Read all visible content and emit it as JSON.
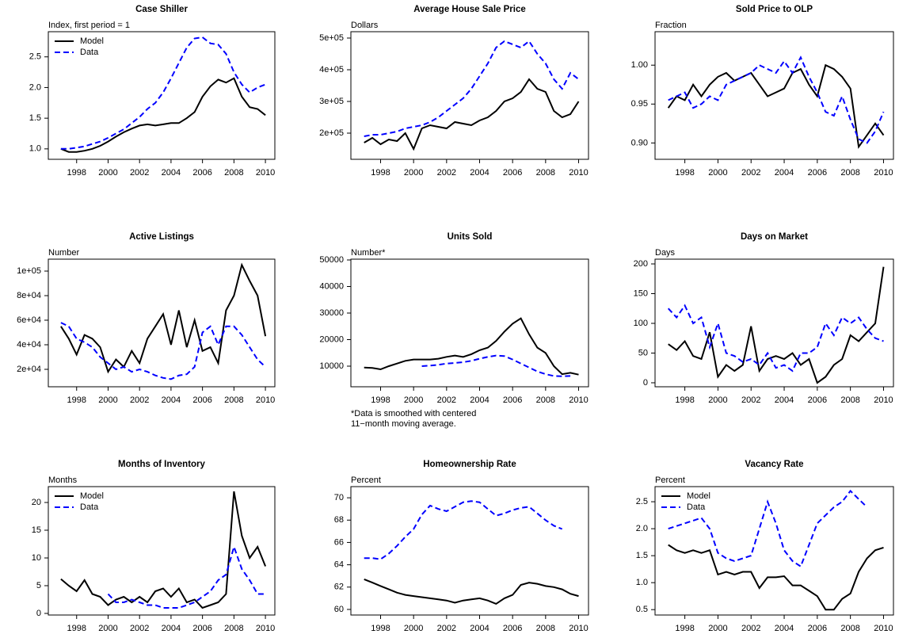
{
  "chart_data": [
    {
      "type": "line",
      "title": "Case Shiller",
      "y_label": "Index, first period = 1",
      "legend": "top-left",
      "x": [
        1997,
        1997.5,
        1998,
        1998.5,
        1999,
        1999.5,
        2000,
        2000.5,
        2001,
        2001.5,
        2002,
        2002.5,
        2003,
        2003.5,
        2004,
        2004.5,
        2005,
        2005.5,
        2006,
        2006.5,
        2007,
        2007.5,
        2008,
        2008.5,
        2009,
        2009.5,
        2010
      ],
      "xlim": [
        1996.2,
        2010.6
      ],
      "xticks": [
        1998,
        2000,
        2002,
        2004,
        2006,
        2008,
        2010
      ],
      "ylim": [
        0.83,
        2.91
      ],
      "yticks": [
        {
          "value": 1,
          "label": "1.0"
        },
        1.5,
        {
          "value": 2,
          "label": "2.0"
        },
        2.5
      ],
      "series": [
        {
          "name": "Model",
          "color": "#000000",
          "dash": false,
          "values": [
            1.0,
            0.95,
            0.95,
            0.97,
            1.0,
            1.05,
            1.12,
            1.2,
            1.27,
            1.33,
            1.38,
            1.4,
            1.38,
            1.4,
            1.42,
            1.42,
            1.5,
            1.6,
            1.85,
            2.02,
            2.13,
            2.08,
            2.15,
            1.85,
            1.68,
            1.65,
            1.55
          ]
        },
        {
          "name": "Data",
          "color": "#0000ff",
          "dash": true,
          "values": [
            1.0,
            1.0,
            1.02,
            1.04,
            1.08,
            1.12,
            1.18,
            1.25,
            1.32,
            1.42,
            1.52,
            1.65,
            1.75,
            1.92,
            2.15,
            2.4,
            2.65,
            2.8,
            2.82,
            2.72,
            2.7,
            2.55,
            2.25,
            2.05,
            1.92,
            2.0,
            2.05
          ]
        }
      ]
    },
    {
      "type": "line",
      "title": "Average House Sale Price",
      "y_label": "Dollars",
      "x": [
        1997,
        1997.5,
        1998,
        1998.5,
        1999,
        1999.5,
        2000,
        2000.5,
        2001,
        2001.5,
        2002,
        2002.5,
        2003,
        2003.5,
        2004,
        2004.5,
        2005,
        2005.5,
        2006,
        2006.5,
        2007,
        2007.5,
        2008,
        2008.5,
        2009,
        2009.5,
        2010
      ],
      "xlim": [
        1996.2,
        2010.6
      ],
      "xticks": [
        1998,
        2000,
        2002,
        2004,
        2006,
        2008,
        2010
      ],
      "ylim": [
        117500,
        520000
      ],
      "yticks": [
        {
          "value": 200000,
          "label": "2e+05"
        },
        {
          "value": 300000,
          "label": "3e+05"
        },
        {
          "value": 400000,
          "label": "4e+05"
        },
        {
          "value": 500000,
          "label": "5e+05"
        }
      ],
      "series": [
        {
          "color": "#000000",
          "dash": false,
          "values": [
            170000,
            185000,
            165000,
            180000,
            175000,
            200000,
            150000,
            215000,
            225000,
            220000,
            215000,
            235000,
            230000,
            225000,
            240000,
            250000,
            270000,
            300000,
            310000,
            330000,
            370000,
            340000,
            330000,
            270000,
            250000,
            260000,
            300000
          ]
        },
        {
          "color": "#0000ff",
          "dash": true,
          "values": [
            190000,
            195000,
            195000,
            200000,
            205000,
            215000,
            220000,
            225000,
            235000,
            250000,
            270000,
            290000,
            310000,
            340000,
            380000,
            420000,
            470000,
            490000,
            480000,
            470000,
            490000,
            450000,
            420000,
            370000,
            340000,
            390000,
            370000
          ]
        }
      ]
    },
    {
      "type": "line",
      "title": "Sold Price to OLP",
      "y_label": "Fraction",
      "x": [
        1997,
        1997.5,
        1998,
        1998.5,
        1999,
        1999.5,
        2000,
        2000.5,
        2001,
        2001.5,
        2002,
        2002.5,
        2003,
        2003.5,
        2004,
        2004.5,
        2005,
        2005.5,
        2006,
        2006.5,
        2007,
        2007.5,
        2008,
        2008.5,
        2009,
        2009.5,
        2010
      ],
      "xlim": [
        1996.2,
        2010.6
      ],
      "xticks": [
        1998,
        2000,
        2002,
        2004,
        2006,
        2008,
        2010
      ],
      "ylim": [
        0.879,
        1.043
      ],
      "yticks": [
        {
          "value": 0.9,
          "label": "0.90"
        },
        0.95,
        {
          "value": 1,
          "label": "1.00"
        }
      ],
      "series": [
        {
          "color": "#000000",
          "dash": false,
          "values": [
            0.945,
            0.96,
            0.955,
            0.975,
            0.96,
            0.975,
            0.985,
            0.99,
            0.98,
            0.985,
            0.99,
            0.975,
            0.96,
            0.965,
            0.97,
            0.99,
            0.995,
            0.975,
            0.96,
            1.0,
            0.995,
            0.985,
            0.97,
            0.895,
            0.91,
            0.925,
            0.91
          ]
        },
        {
          "color": "#0000ff",
          "dash": true,
          "values": [
            0.955,
            0.96,
            0.965,
            0.945,
            0.95,
            0.96,
            0.955,
            0.975,
            0.98,
            0.985,
            0.99,
            1.0,
            0.995,
            0.99,
            1.005,
            0.99,
            1.01,
            0.985,
            0.965,
            0.94,
            0.935,
            0.96,
            0.93,
            0.905,
            0.9,
            0.915,
            0.94
          ]
        }
      ]
    },
    {
      "type": "line",
      "title": "Active Listings",
      "y_label": "Number",
      "x": [
        1997,
        1997.5,
        1998,
        1998.5,
        1999,
        1999.5,
        2000,
        2000.5,
        2001,
        2001.5,
        2002,
        2002.5,
        2003,
        2003.5,
        2004,
        2004.5,
        2005,
        2005.5,
        2006,
        2006.5,
        2007,
        2007.5,
        2008,
        2008.5,
        2009,
        2009.5,
        2010
      ],
      "xlim": [
        1996.2,
        2010.6
      ],
      "xticks": [
        1998,
        2000,
        2002,
        2004,
        2006,
        2008,
        2010
      ],
      "ylim": [
        5800,
        109700
      ],
      "yticks": [
        {
          "value": 20000,
          "label": "2e+04"
        },
        {
          "value": 40000,
          "label": "4e+04"
        },
        {
          "value": 60000,
          "label": "6e+04"
        },
        {
          "value": 80000,
          "label": "8e+04"
        },
        {
          "value": 100000,
          "label": "1e+05"
        }
      ],
      "series": [
        {
          "color": "#000000",
          "dash": false,
          "values": [
            55000,
            45000,
            32000,
            48000,
            45000,
            38000,
            18000,
            28000,
            22000,
            35000,
            25000,
            45000,
            55000,
            65000,
            40000,
            68000,
            38000,
            60000,
            35000,
            38000,
            25000,
            68000,
            80000,
            105000,
            92000,
            80000,
            47000
          ]
        },
        {
          "color": "#0000ff",
          "dash": true,
          "values": [
            58000,
            55000,
            45000,
            42000,
            38000,
            30000,
            25000,
            20000,
            22000,
            18000,
            20000,
            18000,
            15000,
            13000,
            12000,
            15000,
            16000,
            22000,
            50000,
            55000,
            40000,
            55000,
            55000,
            48000,
            38000,
            28000,
            22000
          ]
        }
      ]
    },
    {
      "type": "line",
      "title": "Units Sold",
      "y_label": "Number*",
      "note": [
        "*Data is smoothed with centered",
        "11−month moving average."
      ],
      "x": [
        1997,
        1997.5,
        1998,
        1998.5,
        1999,
        1999.5,
        2000,
        2000.5,
        2001,
        2001.5,
        2002,
        2002.5,
        2003,
        2003.5,
        2004,
        2004.5,
        2005,
        2005.5,
        2006,
        2006.5,
        2007,
        2007.5,
        2008,
        2008.5,
        2009,
        2009.5,
        2010
      ],
      "xlim": [
        1996.2,
        2010.6
      ],
      "xticks": [
        1998,
        2000,
        2002,
        2004,
        2006,
        2008,
        2010
      ],
      "ylim": [
        2240,
        50300
      ],
      "yticks": [
        10000,
        20000,
        30000,
        40000,
        50000
      ],
      "series": [
        {
          "color": "#000000",
          "dash": false,
          "values": [
            9500,
            9300,
            8800,
            10000,
            11000,
            12000,
            12500,
            12500,
            12500,
            12800,
            13500,
            14000,
            13500,
            14500,
            16000,
            17000,
            19500,
            23000,
            26000,
            28000,
            22000,
            17000,
            15000,
            10000,
            7000,
            7500,
            6800
          ]
        },
        {
          "color": "#0000ff",
          "dash": true,
          "values": [
            null,
            null,
            null,
            null,
            null,
            null,
            null,
            10000,
            10200,
            10500,
            11000,
            11200,
            11500,
            12000,
            12800,
            13500,
            14000,
            13800,
            12500,
            11000,
            9500,
            8000,
            7000,
            6300,
            6200,
            6300,
            null
          ]
        }
      ]
    },
    {
      "type": "line",
      "title": "Days on Market",
      "y_label": "Days",
      "x": [
        1997,
        1997.5,
        1998,
        1998.5,
        1999,
        1999.5,
        2000,
        2000.5,
        2001,
        2001.5,
        2002,
        2002.5,
        2003,
        2003.5,
        2004,
        2004.5,
        2005,
        2005.5,
        2006,
        2006.5,
        2007,
        2007.5,
        2008,
        2008.5,
        2009,
        2009.5,
        2010
      ],
      "xlim": [
        1996.2,
        2010.6
      ],
      "xticks": [
        1998,
        2000,
        2002,
        2004,
        2006,
        2008,
        2010
      ],
      "ylim": [
        -6.7,
        208
      ],
      "yticks": [
        0,
        50,
        100,
        150,
        200
      ],
      "series": [
        {
          "color": "#000000",
          "dash": false,
          "values": [
            65,
            55,
            70,
            45,
            40,
            85,
            10,
            30,
            20,
            30,
            95,
            20,
            40,
            45,
            40,
            50,
            30,
            40,
            0,
            10,
            30,
            40,
            80,
            70,
            85,
            100,
            195
          ]
        },
        {
          "color": "#0000ff",
          "dash": true,
          "values": [
            125,
            110,
            130,
            100,
            110,
            60,
            100,
            50,
            45,
            35,
            40,
            30,
            50,
            25,
            30,
            20,
            50,
            50,
            60,
            100,
            80,
            110,
            100,
            110,
            90,
            75,
            70
          ]
        }
      ]
    },
    {
      "type": "line",
      "title": "Months of Inventory",
      "y_label": "Months",
      "legend": "top-left",
      "x": [
        1997,
        1997.5,
        1998,
        1998.5,
        1999,
        1999.5,
        2000,
        2000.5,
        2001,
        2001.5,
        2002,
        2002.5,
        2003,
        2003.5,
        2004,
        2004.5,
        2005,
        2005.5,
        2006,
        2006.5,
        2007,
        2007.5,
        2008,
        2008.5,
        2009,
        2009.5,
        2010
      ],
      "xlim": [
        1996.2,
        2010.6
      ],
      "xticks": [
        1998,
        2000,
        2002,
        2004,
        2006,
        2008,
        2010
      ],
      "ylim": [
        -0.29,
        22.86
      ],
      "yticks": [
        0,
        5,
        10,
        15,
        20
      ],
      "series": [
        {
          "name": "Model",
          "color": "#000000",
          "dash": false,
          "values": [
            6.2,
            5,
            4,
            6,
            3.5,
            3,
            1.5,
            2.5,
            3,
            2,
            3,
            2,
            4,
            4.5,
            3,
            4.5,
            2,
            2.5,
            1,
            1.5,
            2,
            3.5,
            22,
            14,
            10,
            12,
            8.5
          ]
        },
        {
          "name": "Data",
          "color": "#0000ff",
          "dash": true,
          "values": [
            null,
            null,
            null,
            null,
            null,
            null,
            3.5,
            2,
            2,
            2.5,
            2,
            1.5,
            1.5,
            1,
            1,
            1,
            1.5,
            2,
            3,
            4,
            6,
            7,
            12,
            8,
            6,
            3.5,
            3.5
          ]
        }
      ]
    },
    {
      "type": "line",
      "title": "Homeownership Rate",
      "y_label": "Percent",
      "x": [
        1997,
        1997.5,
        1998,
        1998.5,
        1999,
        1999.5,
        2000,
        2000.5,
        2001,
        2001.5,
        2002,
        2002.5,
        2003,
        2003.5,
        2004,
        2004.5,
        2005,
        2005.5,
        2006,
        2006.5,
        2007,
        2007.5,
        2008,
        2008.5,
        2009,
        2009.5,
        2010
      ],
      "xlim": [
        1996.2,
        2010.6
      ],
      "xticks": [
        1998,
        2000,
        2002,
        2004,
        2006,
        2008,
        2010
      ],
      "ylim": [
        59.5,
        71
      ],
      "yticks": [
        60,
        62,
        64,
        66,
        68,
        70
      ],
      "series": [
        {
          "color": "#000000",
          "dash": false,
          "values": [
            62.7,
            62.4,
            62.1,
            61.8,
            61.5,
            61.3,
            61.2,
            61.1,
            61,
            60.9,
            60.8,
            60.6,
            60.8,
            60.9,
            61,
            60.8,
            60.5,
            61,
            61.3,
            62.2,
            62.4,
            62.3,
            62.1,
            62,
            61.8,
            61.4,
            61.2
          ]
        },
        {
          "color": "#0000ff",
          "dash": true,
          "values": [
            64.6,
            64.6,
            64.5,
            65,
            65.7,
            66.5,
            67.2,
            68.5,
            69.3,
            69,
            68.8,
            69.2,
            69.6,
            69.7,
            69.6,
            69,
            68.4,
            68.6,
            68.9,
            69.1,
            69.2,
            68.6,
            68,
            67.5,
            67.2,
            null,
            null
          ]
        }
      ]
    },
    {
      "type": "line",
      "title": "Vacancy Rate",
      "y_label": "Percent",
      "legend": "top-left",
      "x": [
        1997,
        1997.5,
        1998,
        1998.5,
        1999,
        1999.5,
        2000,
        2000.5,
        2001,
        2001.5,
        2002,
        2002.5,
        2003,
        2003.5,
        2004,
        2004.5,
        2005,
        2005.5,
        2006,
        2006.5,
        2007,
        2007.5,
        2008,
        2008.5,
        2009,
        2009.5,
        2010
      ],
      "xlim": [
        1996.2,
        2010.6
      ],
      "xticks": [
        1998,
        2000,
        2002,
        2004,
        2006,
        2008,
        2010
      ],
      "ylim": [
        0.4,
        2.78
      ],
      "yticks": [
        0.5,
        {
          "value": 1,
          "label": "1.0"
        },
        1.5,
        {
          "value": 2,
          "label": "2.0"
        },
        2.5
      ],
      "series": [
        {
          "name": "Model",
          "color": "#000000",
          "dash": false,
          "values": [
            1.7,
            1.6,
            1.55,
            1.6,
            1.55,
            1.6,
            1.15,
            1.2,
            1.15,
            1.2,
            1.2,
            0.9,
            1.1,
            1.1,
            1.12,
            0.95,
            0.95,
            0.85,
            0.75,
            0.5,
            0.5,
            0.7,
            0.8,
            1.2,
            1.45,
            1.6,
            1.65
          ]
        },
        {
          "name": "Data",
          "color": "#0000ff",
          "dash": true,
          "values": [
            2.0,
            2.05,
            2.1,
            2.15,
            2.2,
            2.0,
            1.55,
            1.45,
            1.4,
            1.45,
            1.5,
            2.0,
            2.5,
            2.1,
            1.6,
            1.4,
            1.3,
            1.7,
            2.1,
            2.25,
            2.4,
            2.5,
            2.7,
            2.55,
            2.4,
            null,
            null
          ]
        }
      ]
    }
  ]
}
